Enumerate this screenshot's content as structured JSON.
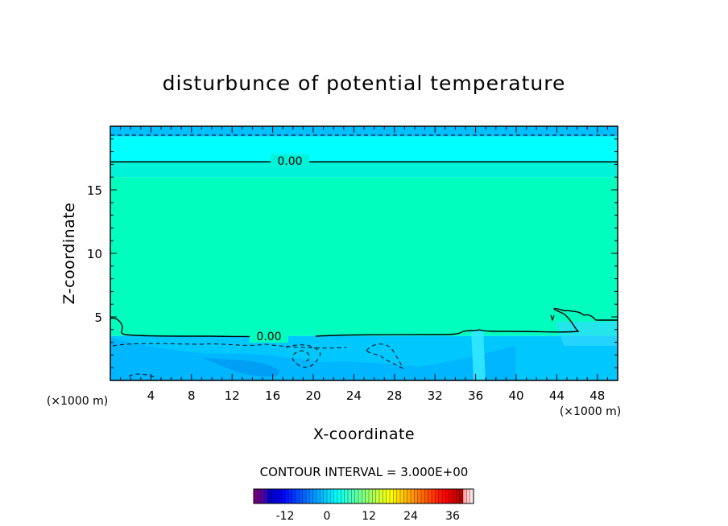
{
  "chart_data": {
    "type": "heatmap",
    "title": "disturbunce of potential temperature",
    "xlabel": "X-coordinate",
    "ylabel": "Z-coordinate",
    "x_unit": "(×1000 m)",
    "y_unit": "(×1000 m)",
    "xlim": [
      0,
      50
    ],
    "ylim": [
      0,
      20
    ],
    "xticks": [
      4,
      8,
      12,
      16,
      20,
      24,
      28,
      32,
      36,
      40,
      44,
      48
    ],
    "yticks": [
      5,
      10,
      15
    ],
    "contour_interval_label": "CONTOUR INTERVAL = 3.000E+00",
    "contour_interval": 3.0,
    "zero_contour_label": "0.00",
    "zero_contours": [
      {
        "label": "0.00",
        "z": 17.2
      },
      {
        "label": "0.00",
        "z": 3.5
      }
    ],
    "colorbar": {
      "range": [
        -21,
        42
      ],
      "ticks": [
        -12,
        0,
        12,
        24,
        36
      ],
      "tick_labels": [
        "-12",
        "0",
        "12",
        "24",
        "36"
      ]
    },
    "field_bands": [
      {
        "z_range": [
          19.2,
          20
        ],
        "value": -1.5,
        "color": "#00bfff"
      },
      {
        "z_range": [
          17.2,
          19.2
        ],
        "value": -0.5,
        "color": "#00ffff"
      },
      {
        "z_range": [
          16.0,
          17.2
        ],
        "value": 0.5,
        "color": "#00f2d8"
      },
      {
        "z_range": [
          3.5,
          16.0
        ],
        "value": 1.5,
        "color": "#00ffbf"
      },
      {
        "z_range": [
          0,
          3.5
        ],
        "value": -2,
        "color": "#00c8ff"
      }
    ]
  }
}
